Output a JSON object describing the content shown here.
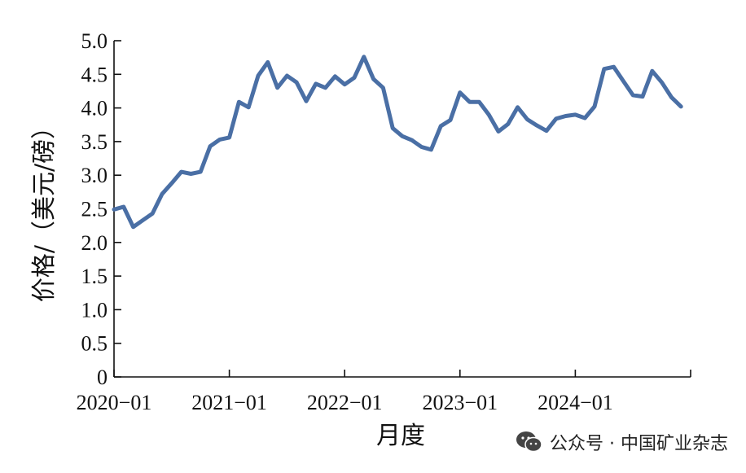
{
  "chart_data": {
    "type": "line",
    "xlabel": "月度",
    "ylabel": "价格/（美元/磅）",
    "ylim": [
      0,
      5.0
    ],
    "yticks": [
      0,
      0.5,
      1.0,
      1.5,
      2.0,
      2.5,
      3.0,
      3.5,
      4.0,
      4.5,
      5.0
    ],
    "ytick_labels": [
      "0",
      "0.5",
      "1.0",
      "1.5",
      "2.0",
      "2.5",
      "3.0",
      "3.5",
      "4.0",
      "4.5",
      "5.0"
    ],
    "xticks": [
      "2020−01",
      "2021−01",
      "2022−01",
      "2023−01",
      "2024−01"
    ],
    "grid": false,
    "line_color": "#4a6fa5",
    "series": [
      {
        "values": [
          2.49,
          2.53,
          2.23,
          2.33,
          2.43,
          2.72,
          2.88,
          3.05,
          3.02,
          3.05,
          3.43,
          3.53,
          3.56,
          4.09,
          4.01,
          4.48,
          4.68,
          4.3,
          4.48,
          4.38,
          4.1,
          4.36,
          4.3,
          4.47,
          4.35,
          4.45,
          4.76,
          4.43,
          4.3,
          3.7,
          3.58,
          3.52,
          3.42,
          3.38,
          3.73,
          3.82,
          4.23,
          4.09,
          4.09,
          3.9,
          3.65,
          3.76,
          4.01,
          3.83,
          3.74,
          3.66,
          3.84,
          3.88,
          3.9,
          3.85,
          4.02,
          4.58,
          4.61,
          4.4,
          4.19,
          4.17,
          4.55,
          4.38,
          4.16,
          4.02
        ]
      }
    ]
  },
  "watermark": {
    "text": "公众号 · 中国矿业杂志"
  }
}
